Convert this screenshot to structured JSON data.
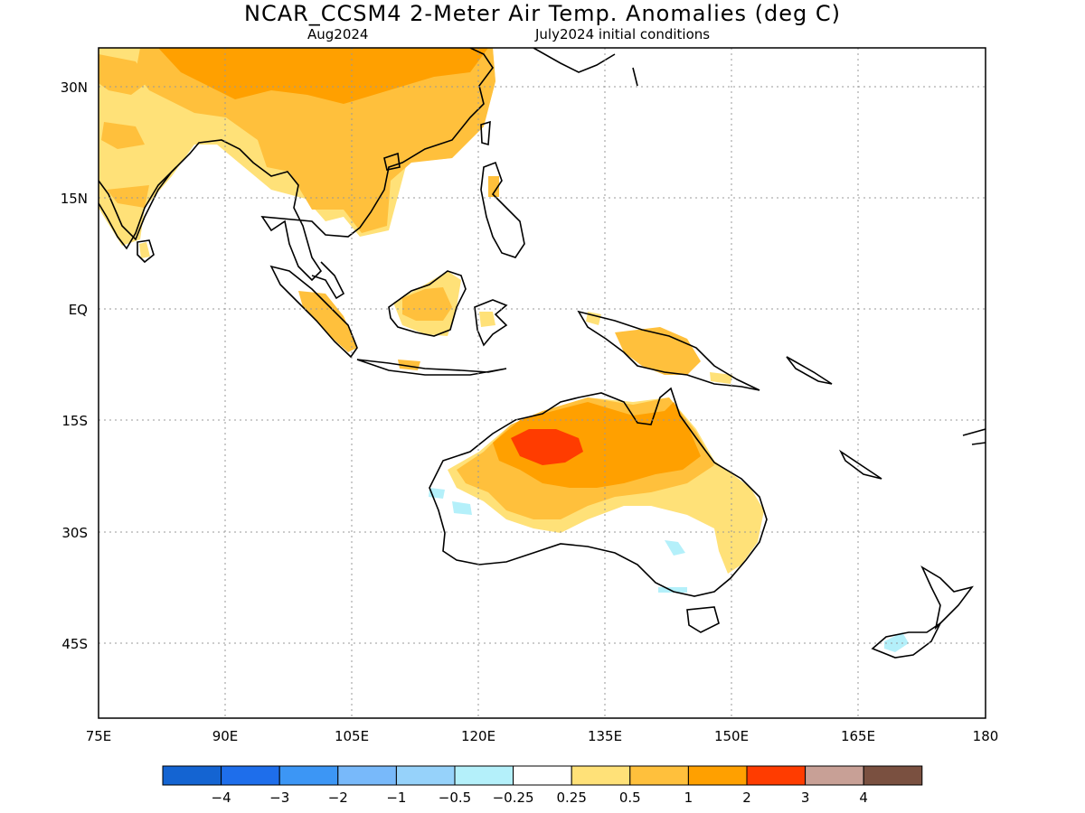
{
  "title": "NCAR_CCSM4 2-Meter Air Temp. Anomalies (deg C)",
  "subtitle_left": "Aug2024",
  "subtitle_right": "July2024 initial conditions",
  "map": {
    "lon_range": [
      75,
      180
    ],
    "lat_range": [
      -49,
      35
    ],
    "lon_ticks": [
      {
        "value": 75,
        "label": "75E"
      },
      {
        "value": 90,
        "label": "90E"
      },
      {
        "value": 105,
        "label": "105E"
      },
      {
        "value": 120,
        "label": "120E"
      },
      {
        "value": 135,
        "label": "135E"
      },
      {
        "value": 150,
        "label": "150E"
      },
      {
        "value": 165,
        "label": "165E"
      },
      {
        "value": 180,
        "label": "180"
      }
    ],
    "lat_ticks": [
      {
        "value": 30,
        "label": "30N"
      },
      {
        "value": 15,
        "label": "15N"
      },
      {
        "value": 0,
        "label": "EQ"
      },
      {
        "value": -15,
        "label": "15S"
      },
      {
        "value": -30,
        "label": "30S"
      },
      {
        "value": -45,
        "label": "45S"
      }
    ],
    "grid": "dotted"
  },
  "colorbar": {
    "colors": [
      "#1464d2",
      "#1e6eeb",
      "#3c96f5",
      "#78b9fa",
      "#96d2fa",
      "#b4f0fa",
      "#ffffff",
      "#ffe178",
      "#ffc03c",
      "#ffa000",
      "#ff3c00",
      "#c8a096",
      "#7a5040"
    ],
    "labels": [
      "-4",
      "-3",
      "-2",
      "-1",
      "-0.5",
      "-0.25",
      "0.25",
      "0.5",
      "1",
      "2",
      "3",
      "4"
    ]
  }
}
